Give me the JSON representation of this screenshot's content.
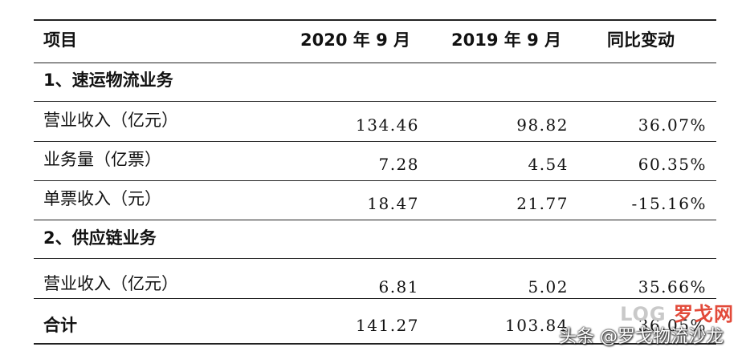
{
  "header": {
    "item": "项目",
    "col2020": "2020 年 9 月",
    "col2019": "2019 年 9 月",
    "yoy": "同比变动"
  },
  "sections": [
    {
      "title": "1、速运物流业务"
    },
    {
      "title": "2、供应链业务"
    }
  ],
  "rows": [
    {
      "label": "营业收入（亿元）",
      "v2020": "134.46",
      "v2019": "98.82",
      "yoy": "36.07%"
    },
    {
      "label": "业务量（亿票）",
      "v2020": "7.28",
      "v2019": "4.54",
      "yoy": "60.35%"
    },
    {
      "label": "单票收入（元）",
      "v2020": "18.47",
      "v2019": "21.77",
      "yoy": "-15.16%"
    },
    {
      "label": "营业收入（亿元）",
      "v2020": "6.81",
      "v2019": "5.02",
      "yoy": "35.66%"
    }
  ],
  "total": {
    "label": "合计",
    "v2020": "141.27",
    "v2019": "103.84",
    "yoy": "36.05%"
  },
  "watermark": {
    "logo_left": "LOG",
    "logo_right": "罗戈网",
    "text": "头条 @罗戈物流沙龙"
  }
}
